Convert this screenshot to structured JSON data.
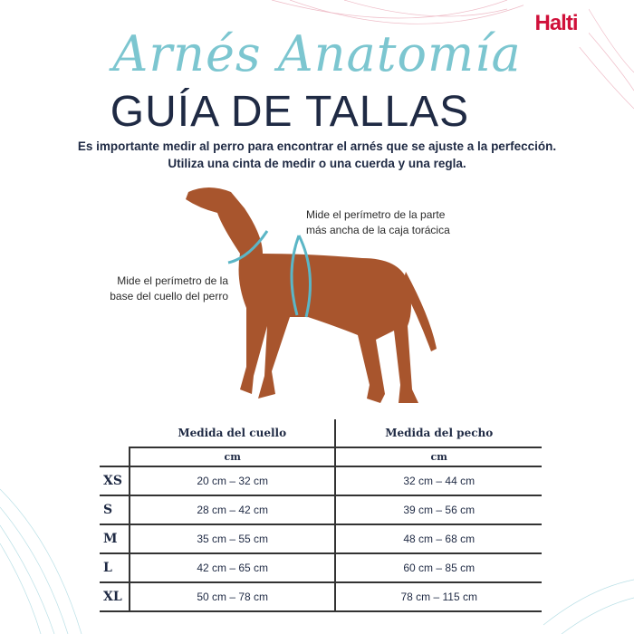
{
  "brand": {
    "logo": "Halti",
    "color": "#d0103a"
  },
  "header": {
    "script_title": "Arnés Anatomía",
    "title": "GUÍA DE TALLAS"
  },
  "intro": {
    "line1": "Es importante medir al perro para encontrar el arnés que se ajuste a la perfección.",
    "line2": "Utiliza una cinta de medir o una cuerda y una regla."
  },
  "annotations": {
    "chest_line1": "Mide el perímetro de la parte",
    "chest_line2": "más ancha de la caja torácica",
    "neck_line1": "Mide el perímetro de la",
    "neck_line2": "base del cuello del perro"
  },
  "table": {
    "headers": [
      "Medida del cuello",
      "Medida del pecho"
    ],
    "units": [
      "cm",
      "cm"
    ],
    "rows": [
      {
        "size": "XS",
        "neck": "20 cm – 32 cm",
        "chest": "32 cm – 44 cm"
      },
      {
        "size": "S",
        "neck": "28 cm – 42 cm",
        "chest": "39 cm – 56 cm"
      },
      {
        "size": "M",
        "neck": "35 cm – 55 cm",
        "chest": "48 cm – 68 cm"
      },
      {
        "size": "L",
        "neck": "42 cm – 65 cm",
        "chest": "60 cm – 85 cm"
      },
      {
        "size": "XL",
        "neck": "50 cm – 78 cm",
        "chest": "78 cm – 115 cm"
      }
    ]
  },
  "colors": {
    "accent": "#7cc6d0",
    "text": "#1f2a44",
    "dog": "#a8552d"
  }
}
